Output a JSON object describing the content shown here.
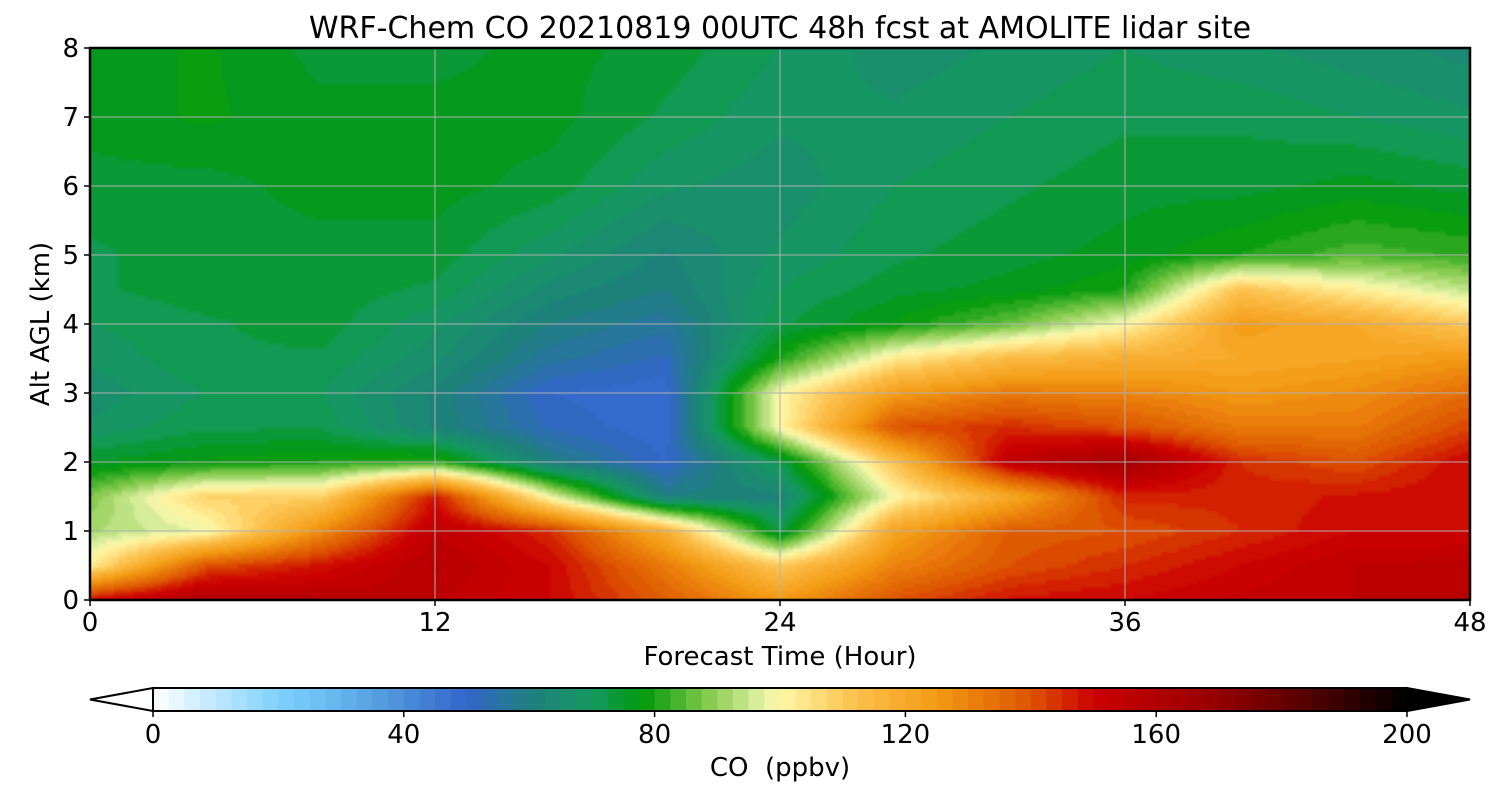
{
  "chart_data": {
    "type": "heatmap",
    "title": "WRF-Chem CO  20210819 00UTC 48h fcst at AMOLITE lidar site",
    "xlabel": "Forecast Time (Hour)",
    "ylabel": "Alt AGL (km)",
    "xlim": [
      0,
      48
    ],
    "ylim": [
      0,
      8
    ],
    "x_ticks": [
      "0",
      "12",
      "24",
      "36",
      "48"
    ],
    "y_ticks": [
      "0",
      "1",
      "2",
      "3",
      "4",
      "5",
      "6",
      "7",
      "8"
    ],
    "grid": true,
    "x": [
      0,
      4,
      8,
      12,
      16,
      20,
      24,
      28,
      32,
      36,
      40,
      44,
      48
    ],
    "y": [
      0,
      0.5,
      1,
      1.5,
      2,
      2.5,
      3,
      3.5,
      4,
      4.5,
      5,
      6,
      7,
      8
    ],
    "z": [
      [
        150,
        160,
        158,
        155,
        150,
        138,
        125,
        140,
        148,
        150,
        153,
        155,
        158
      ],
      [
        102,
        140,
        148,
        158,
        150,
        132,
        110,
        130,
        140,
        145,
        150,
        155,
        156
      ],
      [
        92,
        98,
        128,
        155,
        145,
        118,
        72,
        122,
        138,
        140,
        145,
        150,
        150
      ],
      [
        88,
        108,
        108,
        148,
        98,
        60,
        62,
        100,
        120,
        146,
        146,
        148,
        150
      ],
      [
        75,
        78,
        80,
        82,
        60,
        50,
        72,
        112,
        155,
        165,
        145,
        140,
        150
      ],
      [
        68,
        72,
        72,
        62,
        52,
        48,
        100,
        140,
        145,
        140,
        132,
        132,
        142
      ],
      [
        66,
        70,
        70,
        62,
        50,
        48,
        100,
        124,
        132,
        130,
        125,
        128,
        135
      ],
      [
        68,
        72,
        72,
        66,
        56,
        52,
        80,
        103,
        114,
        118,
        120,
        122,
        125
      ],
      [
        70,
        72,
        74,
        68,
        60,
        56,
        72,
        78,
        86,
        100,
        124,
        120,
        110
      ],
      [
        72,
        74,
        74,
        72,
        64,
        60,
        70,
        74,
        76,
        80,
        112,
        102,
        94
      ],
      [
        72,
        74,
        74,
        74,
        68,
        62,
        68,
        72,
        74,
        76,
        80,
        84,
        82
      ],
      [
        74,
        74,
        76,
        76,
        74,
        68,
        66,
        70,
        72,
        74,
        74,
        76,
        74
      ],
      [
        76,
        78,
        76,
        76,
        76,
        72,
        68,
        68,
        70,
        72,
        72,
        70,
        68
      ],
      [
        76,
        78,
        74,
        74,
        76,
        74,
        70,
        66,
        68,
        70,
        68,
        66,
        64
      ]
    ],
    "colorbar": {
      "label": "CO  (ppbv)",
      "min": 0,
      "max": 200,
      "ticks": [
        "0",
        "40",
        "80",
        "120",
        "160",
        "200"
      ],
      "extend": "both",
      "stops": [
        {
          "v": 0,
          "c": "#ffffff"
        },
        {
          "v": 20,
          "c": "#7fd0ff"
        },
        {
          "v": 30,
          "c": "#63b4ec"
        },
        {
          "v": 40,
          "c": "#4b8ed8"
        },
        {
          "v": 50,
          "c": "#3366cc"
        },
        {
          "v": 60,
          "c": "#1f7f7f"
        },
        {
          "v": 70,
          "c": "#159960"
        },
        {
          "v": 78,
          "c": "#00990a"
        },
        {
          "v": 88,
          "c": "#7fc84a"
        },
        {
          "v": 97,
          "c": "#dff0a0"
        },
        {
          "v": 100,
          "c": "#fff8a8"
        },
        {
          "v": 112,
          "c": "#fcc04c"
        },
        {
          "v": 125,
          "c": "#f39a14"
        },
        {
          "v": 140,
          "c": "#dd5500"
        },
        {
          "v": 150,
          "c": "#cc0000"
        },
        {
          "v": 170,
          "c": "#950000"
        },
        {
          "v": 185,
          "c": "#500000"
        },
        {
          "v": 200,
          "c": "#000000"
        }
      ]
    }
  }
}
